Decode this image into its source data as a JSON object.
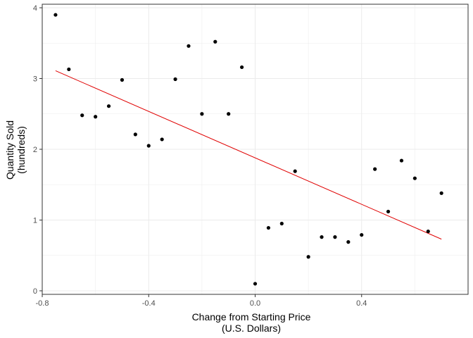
{
  "chart_data": {
    "type": "scatter",
    "title": "",
    "xlabel": [
      "Change from Starting Price",
      "(U.S. Dollars)"
    ],
    "ylabel": [
      "Quantity Sold",
      "(hundreds)"
    ],
    "xlim": [
      -0.8,
      0.8
    ],
    "ylim": [
      -0.05,
      4.05
    ],
    "x_major_ticks": [
      -0.8,
      -0.4,
      0.0,
      0.4
    ],
    "x_tick_labels": [
      "-0.8",
      "-0.4",
      "0.0",
      "0.4"
    ],
    "y_major_ticks": [
      0,
      1,
      2,
      3,
      4
    ],
    "y_tick_labels": [
      "0",
      "1",
      "2",
      "3",
      "4"
    ],
    "x_minor_ticks": [
      -0.6,
      -0.2,
      0.2,
      0.6
    ],
    "y_minor_ticks": [
      0.5,
      1.5,
      2.5,
      3.5
    ],
    "grid": true,
    "colors": {
      "points": "#000000",
      "fit_line": "#e00000",
      "grid": "#ebebeb",
      "panel_border": "#333333"
    },
    "points": [
      {
        "x": -0.75,
        "y": 3.9
      },
      {
        "x": -0.7,
        "y": 3.13
      },
      {
        "x": -0.65,
        "y": 2.48
      },
      {
        "x": -0.6,
        "y": 2.46
      },
      {
        "x": -0.55,
        "y": 2.61
      },
      {
        "x": -0.5,
        "y": 2.98
      },
      {
        "x": -0.45,
        "y": 2.21
      },
      {
        "x": -0.4,
        "y": 2.05
      },
      {
        "x": -0.35,
        "y": 2.14
      },
      {
        "x": -0.3,
        "y": 2.99
      },
      {
        "x": -0.25,
        "y": 3.46
      },
      {
        "x": -0.2,
        "y": 2.5
      },
      {
        "x": -0.15,
        "y": 3.52
      },
      {
        "x": -0.1,
        "y": 2.5
      },
      {
        "x": -0.05,
        "y": 3.16
      },
      {
        "x": 0.0,
        "y": 0.1
      },
      {
        "x": 0.05,
        "y": 0.89
      },
      {
        "x": 0.1,
        "y": 0.95
      },
      {
        "x": 0.15,
        "y": 1.69
      },
      {
        "x": 0.2,
        "y": 0.48
      },
      {
        "x": 0.25,
        "y": 0.76
      },
      {
        "x": 0.3,
        "y": 0.76
      },
      {
        "x": 0.35,
        "y": 0.69
      },
      {
        "x": 0.4,
        "y": 0.79
      },
      {
        "x": 0.45,
        "y": 1.72
      },
      {
        "x": 0.5,
        "y": 1.12
      },
      {
        "x": 0.55,
        "y": 1.84
      },
      {
        "x": 0.6,
        "y": 1.59
      },
      {
        "x": 0.65,
        "y": 0.84
      },
      {
        "x": 0.7,
        "y": 1.38
      }
    ],
    "fit_line": {
      "x": [
        -0.75,
        0.7
      ],
      "y": [
        3.11,
        0.73
      ]
    }
  }
}
